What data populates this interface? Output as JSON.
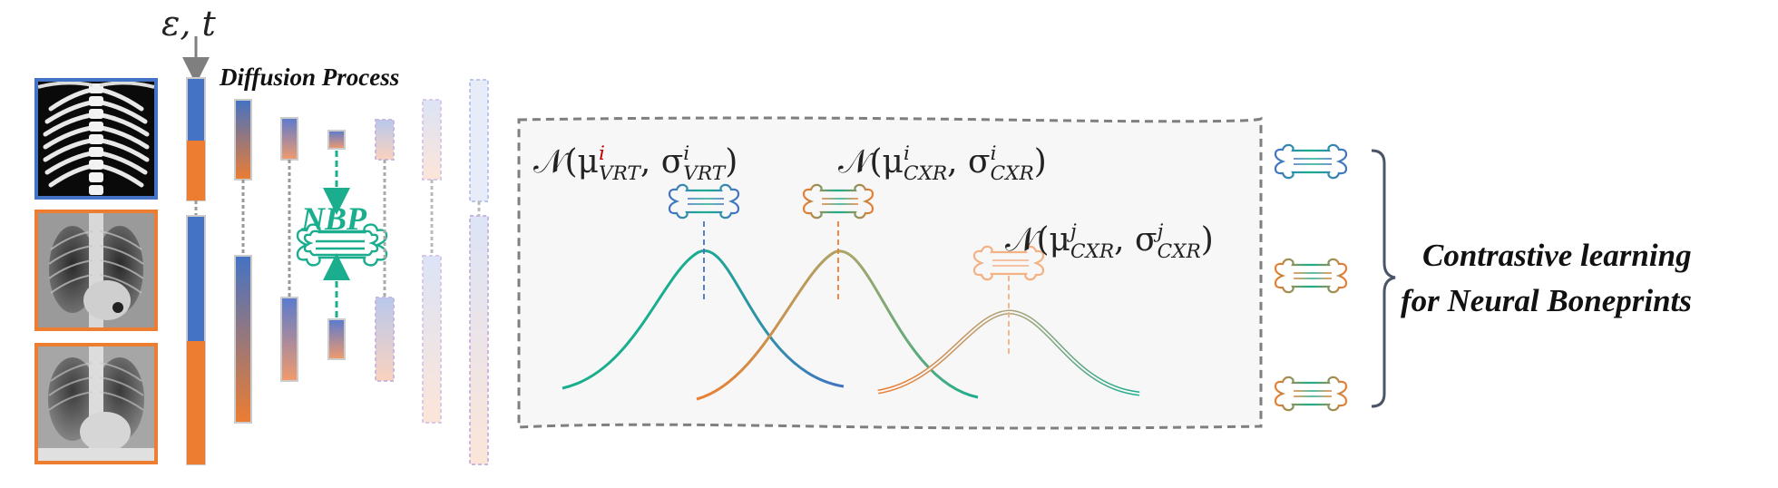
{
  "inputs": {
    "noise_symbol": "ε, t",
    "diffusion_label": "Diffusion Process",
    "nbp_label": "NBP"
  },
  "images": [
    {
      "kind": "vertebra-radiograph",
      "border_color": "#4472C4"
    },
    {
      "kind": "chest-xray",
      "border_color": "#ED7D31"
    },
    {
      "kind": "chest-xray",
      "border_color": "#ED7D31"
    }
  ],
  "distributions": [
    {
      "prefix": "𝒩(μ",
      "sup": "i",
      "sub": "VRT",
      "mid": ", σ",
      "sup2": "i",
      "sub2": "VRT",
      "suffix": ")",
      "sup_color": "#C00000",
      "mean_color": "#4472C4"
    },
    {
      "prefix": "𝒩(μ",
      "sup": "i",
      "sub": "CXR",
      "mid": ", σ",
      "sup2": "i",
      "sub2": "CXR",
      "suffix": ")",
      "sup_color": "#333333",
      "mean_color": "#ED7D31"
    },
    {
      "prefix": "𝒩(μ",
      "sup": "j",
      "sub": "CXR",
      "mid": ", σ",
      "sup2": "j",
      "sub2": "CXR",
      "suffix": ")",
      "sup_color": "#333333",
      "mean_color": "#F4B183"
    }
  ],
  "contrastive": {
    "line1": "Contrastive learning",
    "line2": "for Neural Boneprints"
  },
  "colors": {
    "blue": "#4472C4",
    "orange": "#ED7D31",
    "teal": "#1AAE8E",
    "light_orange": "#F4B183",
    "gray_dash": "#7F7F7F",
    "panel_bg": "#F7F7F7"
  }
}
